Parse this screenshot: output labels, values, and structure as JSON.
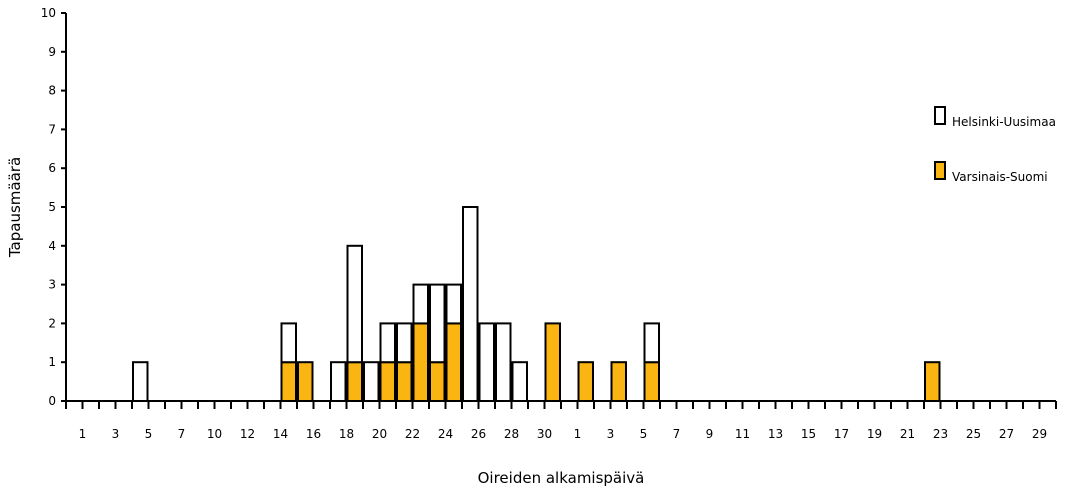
{
  "chart_data": {
    "type": "bar",
    "stacked": true,
    "title": "",
    "xlabel": "Oireiden alkamispäivä",
    "ylabel": "Tapausmäärä",
    "ylim": [
      0,
      10
    ],
    "yticks": [
      "0",
      "1",
      "2",
      "3",
      "4",
      "5",
      "6",
      "7",
      "8",
      "9",
      "10"
    ],
    "x_tick_labels": [
      "1",
      "3",
      "5",
      "7",
      "10",
      "12",
      "14",
      "16",
      "18",
      "20",
      "22",
      "24",
      "26",
      "28",
      "30",
      "1",
      "3",
      "5",
      "7",
      "9",
      "11",
      "13",
      "15",
      "17",
      "19",
      "21",
      "23",
      "25",
      "27",
      "29"
    ],
    "categories": [
      "1",
      "2",
      "3",
      "4",
      "5",
      "6",
      "7",
      "8",
      "9",
      "10",
      "11",
      "12",
      "13",
      "14",
      "15",
      "16",
      "17",
      "18",
      "19",
      "20",
      "21",
      "22",
      "23",
      "24",
      "25",
      "26",
      "27",
      "28",
      "29",
      "30",
      "31",
      "1",
      "2",
      "3",
      "4",
      "5",
      "6",
      "7",
      "8",
      "9",
      "10",
      "11",
      "12",
      "13",
      "14",
      "15",
      "16",
      "17",
      "18",
      "19",
      "20",
      "21",
      "22",
      "23",
      "24",
      "25",
      "26",
      "27",
      "28",
      "29"
    ],
    "series": [
      {
        "name": "Varsinais-Suomi",
        "color": "#fbb512",
        "values": [
          0,
          0,
          0,
          0,
          0,
          0,
          0,
          0,
          0,
          0,
          0,
          0,
          0,
          1,
          1,
          0,
          0,
          1,
          0,
          1,
          1,
          2,
          1,
          2,
          0,
          0,
          0,
          0,
          0,
          2,
          0,
          1,
          0,
          1,
          0,
          1,
          0,
          0,
          0,
          0,
          0,
          0,
          0,
          0,
          0,
          0,
          0,
          0,
          0,
          0,
          0,
          0,
          1,
          0,
          0,
          0,
          0,
          0,
          0,
          0
        ]
      },
      {
        "name": "Helsinki-Uusimaa",
        "color": "#ffffff",
        "values": [
          0,
          0,
          0,
          0,
          1,
          0,
          0,
          0,
          0,
          0,
          0,
          0,
          0,
          1,
          0,
          0,
          1,
          3,
          1,
          1,
          1,
          1,
          2,
          1,
          5,
          2,
          2,
          1,
          0,
          0,
          0,
          0,
          0,
          0,
          0,
          1,
          0,
          0,
          0,
          0,
          0,
          0,
          0,
          0,
          0,
          0,
          0,
          0,
          0,
          0,
          0,
          0,
          0,
          0,
          0,
          0,
          0,
          0,
          0,
          0
        ]
      }
    ],
    "legend": [
      {
        "name": "Helsinki-Uusimaa",
        "color": "#ffffff"
      },
      {
        "name": "Varsinais-Suomi",
        "color": "#fbb512"
      }
    ],
    "legend_placement": "right",
    "grid": false
  }
}
